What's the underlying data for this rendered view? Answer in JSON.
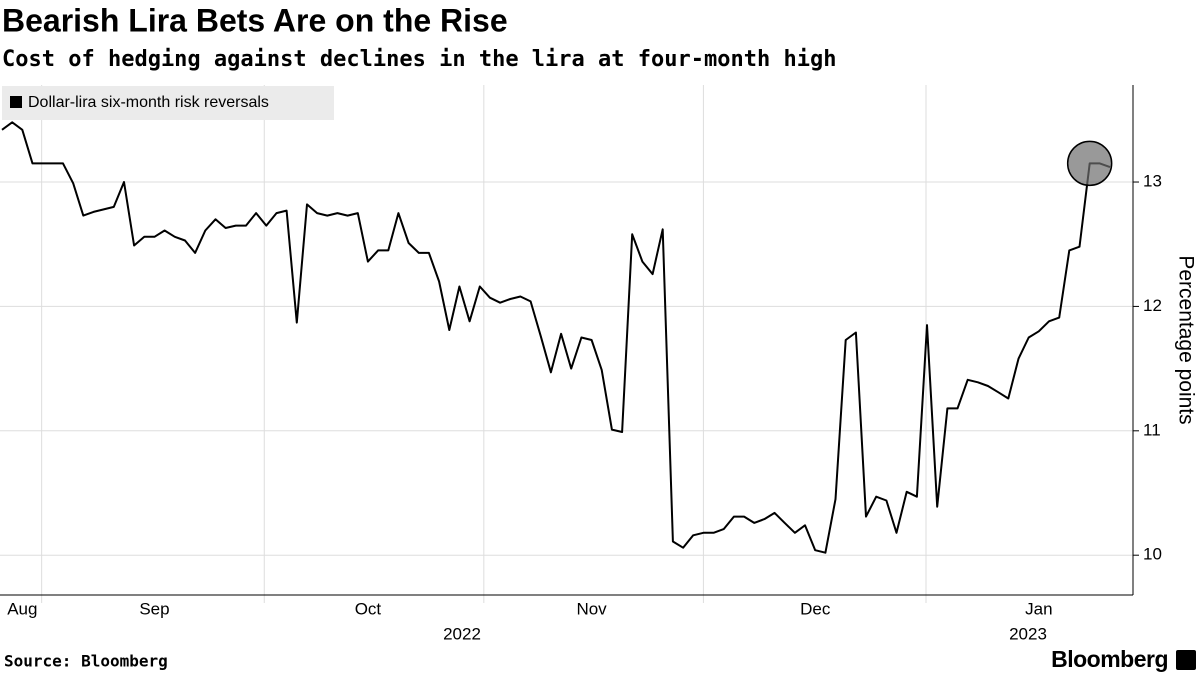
{
  "chart_data": {
    "type": "line",
    "title": "Bearish Lira Bets Are on the Rise",
    "subtitle": "Cost of hedging against declines in the lira at four-month high",
    "y_label": "Percentage points",
    "source": "Source: Bloomberg",
    "brand": "Bloomberg",
    "year_labels": [
      "2022",
      "2023"
    ],
    "categories": [
      null,
      null,
      "Aug",
      null,
      null,
      null,
      null,
      null,
      null,
      null,
      null,
      null,
      null,
      null,
      null,
      "Sep",
      null,
      null,
      null,
      null,
      null,
      null,
      null,
      null,
      null,
      null,
      null,
      null,
      null,
      null,
      null,
      null,
      null,
      null,
      null,
      null,
      "Oct",
      null,
      null,
      null,
      null,
      null,
      null,
      null,
      null,
      null,
      null,
      null,
      null,
      null,
      null,
      null,
      null,
      null,
      null,
      null,
      null,
      null,
      "Nov",
      null,
      null,
      null,
      null,
      null,
      null,
      null,
      null,
      null,
      null,
      null,
      null,
      null,
      null,
      null,
      null,
      null,
      null,
      null,
      null,
      null,
      "Dec",
      null,
      null,
      null,
      null,
      null,
      null,
      null,
      null,
      null,
      null,
      null,
      null,
      null,
      null,
      null,
      null,
      null,
      null,
      null,
      null,
      null,
      "Jan",
      null,
      null,
      null,
      null,
      null,
      null,
      null
    ],
    "series": [
      {
        "name": "Dollar-lira six-month risk reversals",
        "color": "#000000",
        "values": [
          13.42,
          13.48,
          13.42,
          13.15,
          13.15,
          13.15,
          13.15,
          12.99,
          12.73,
          12.76,
          12.78,
          12.8,
          13.0,
          12.49,
          12.56,
          12.56,
          12.61,
          12.56,
          12.53,
          12.43,
          12.61,
          12.7,
          12.63,
          12.65,
          12.65,
          12.75,
          12.65,
          12.75,
          12.77,
          11.87,
          12.82,
          12.75,
          12.73,
          12.75,
          12.73,
          12.75,
          12.36,
          12.45,
          12.45,
          12.75,
          12.51,
          12.43,
          12.43,
          12.2,
          11.81,
          12.16,
          11.88,
          12.16,
          12.07,
          12.03,
          12.06,
          12.08,
          12.04,
          11.76,
          11.47,
          11.78,
          11.5,
          11.75,
          11.73,
          11.49,
          11.01,
          10.99,
          12.58,
          12.36,
          12.26,
          12.62,
          10.11,
          10.06,
          10.16,
          10.18,
          10.18,
          10.21,
          10.31,
          10.31,
          10.26,
          10.29,
          10.34,
          10.26,
          10.18,
          10.24,
          10.04,
          10.02,
          10.45,
          11.73,
          11.79,
          10.31,
          10.47,
          10.44,
          10.18,
          10.51,
          10.47,
          11.85,
          10.39,
          11.18,
          11.18,
          11.41,
          11.39,
          11.36,
          11.31,
          11.26,
          11.58,
          11.75,
          11.8,
          11.88,
          11.91,
          12.45,
          12.48,
          13.15,
          13.15,
          13.12
        ]
      }
    ],
    "ylim": [
      9.68,
      13.78
    ],
    "yticks": [
      10,
      11,
      12,
      13
    ],
    "grid": true,
    "legend": "top-left"
  }
}
